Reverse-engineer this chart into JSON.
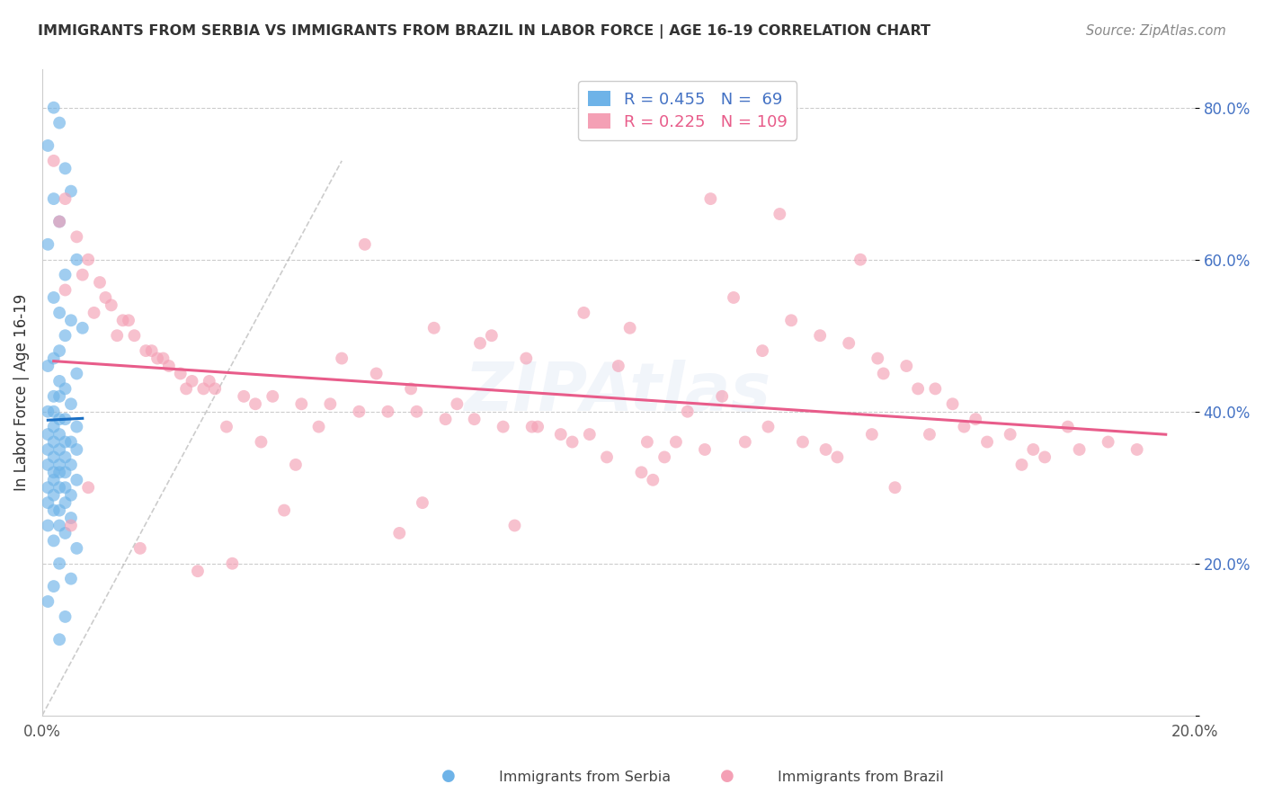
{
  "title": "IMMIGRANTS FROM SERBIA VS IMMIGRANTS FROM BRAZIL IN LABOR FORCE | AGE 16-19 CORRELATION CHART",
  "source": "Source: ZipAtlas.com",
  "ylabel": "In Labor Force | Age 16-19",
  "serbia_R": 0.455,
  "serbia_N": 69,
  "brazil_R": 0.225,
  "brazil_N": 109,
  "serbia_color": "#6eb3e8",
  "brazil_color": "#f4a0b5",
  "serbia_line_color": "#1a6fc4",
  "brazil_line_color": "#e85c8a",
  "x_min": 0.0,
  "x_max": 0.2,
  "y_min": 0.0,
  "y_max": 0.85,
  "serbia_scatter_x": [
    0.002,
    0.003,
    0.001,
    0.004,
    0.005,
    0.002,
    0.003,
    0.001,
    0.006,
    0.004,
    0.002,
    0.003,
    0.005,
    0.007,
    0.004,
    0.003,
    0.002,
    0.001,
    0.006,
    0.003,
    0.004,
    0.002,
    0.003,
    0.005,
    0.002,
    0.001,
    0.004,
    0.003,
    0.006,
    0.002,
    0.001,
    0.003,
    0.004,
    0.002,
    0.005,
    0.003,
    0.001,
    0.006,
    0.004,
    0.002,
    0.003,
    0.001,
    0.005,
    0.002,
    0.004,
    0.003,
    0.006,
    0.002,
    0.001,
    0.004,
    0.003,
    0.005,
    0.002,
    0.001,
    0.004,
    0.003,
    0.002,
    0.005,
    0.001,
    0.003,
    0.004,
    0.002,
    0.006,
    0.003,
    0.005,
    0.002,
    0.001,
    0.004,
    0.003
  ],
  "serbia_scatter_y": [
    0.8,
    0.78,
    0.75,
    0.72,
    0.69,
    0.68,
    0.65,
    0.62,
    0.6,
    0.58,
    0.55,
    0.53,
    0.52,
    0.51,
    0.5,
    0.48,
    0.47,
    0.46,
    0.45,
    0.44,
    0.43,
    0.42,
    0.42,
    0.41,
    0.4,
    0.4,
    0.39,
    0.39,
    0.38,
    0.38,
    0.37,
    0.37,
    0.36,
    0.36,
    0.36,
    0.35,
    0.35,
    0.35,
    0.34,
    0.34,
    0.33,
    0.33,
    0.33,
    0.32,
    0.32,
    0.32,
    0.31,
    0.31,
    0.3,
    0.3,
    0.3,
    0.29,
    0.29,
    0.28,
    0.28,
    0.27,
    0.27,
    0.26,
    0.25,
    0.25,
    0.24,
    0.23,
    0.22,
    0.2,
    0.18,
    0.17,
    0.15,
    0.13,
    0.1
  ],
  "brazil_scatter_x": [
    0.002,
    0.004,
    0.006,
    0.008,
    0.01,
    0.012,
    0.014,
    0.016,
    0.018,
    0.02,
    0.022,
    0.024,
    0.026,
    0.028,
    0.03,
    0.035,
    0.04,
    0.045,
    0.05,
    0.055,
    0.06,
    0.065,
    0.07,
    0.075,
    0.08,
    0.085,
    0.09,
    0.095,
    0.1,
    0.105,
    0.11,
    0.115,
    0.12,
    0.125,
    0.13,
    0.135,
    0.14,
    0.145,
    0.15,
    0.155,
    0.003,
    0.007,
    0.011,
    0.015,
    0.019,
    0.025,
    0.032,
    0.038,
    0.044,
    0.052,
    0.058,
    0.064,
    0.072,
    0.078,
    0.086,
    0.092,
    0.098,
    0.104,
    0.112,
    0.118,
    0.126,
    0.132,
    0.138,
    0.146,
    0.152,
    0.158,
    0.162,
    0.168,
    0.172,
    0.178,
    0.004,
    0.009,
    0.013,
    0.021,
    0.029,
    0.037,
    0.048,
    0.056,
    0.068,
    0.076,
    0.084,
    0.094,
    0.102,
    0.116,
    0.128,
    0.136,
    0.144,
    0.154,
    0.164,
    0.174,
    0.005,
    0.017,
    0.027,
    0.042,
    0.062,
    0.082,
    0.106,
    0.122,
    0.142,
    0.16,
    0.008,
    0.033,
    0.066,
    0.108,
    0.148,
    0.17,
    0.18,
    0.185,
    0.19
  ],
  "brazil_scatter_y": [
    0.73,
    0.68,
    0.63,
    0.6,
    0.57,
    0.54,
    0.52,
    0.5,
    0.48,
    0.47,
    0.46,
    0.45,
    0.44,
    0.43,
    0.43,
    0.42,
    0.42,
    0.41,
    0.41,
    0.4,
    0.4,
    0.4,
    0.39,
    0.39,
    0.38,
    0.38,
    0.37,
    0.37,
    0.46,
    0.36,
    0.36,
    0.35,
    0.55,
    0.48,
    0.52,
    0.5,
    0.49,
    0.47,
    0.46,
    0.43,
    0.65,
    0.58,
    0.55,
    0.52,
    0.48,
    0.43,
    0.38,
    0.36,
    0.33,
    0.47,
    0.45,
    0.43,
    0.41,
    0.5,
    0.38,
    0.36,
    0.34,
    0.32,
    0.4,
    0.42,
    0.38,
    0.36,
    0.34,
    0.45,
    0.43,
    0.41,
    0.39,
    0.37,
    0.35,
    0.38,
    0.56,
    0.53,
    0.5,
    0.47,
    0.44,
    0.41,
    0.38,
    0.62,
    0.51,
    0.49,
    0.47,
    0.53,
    0.51,
    0.68,
    0.66,
    0.35,
    0.37,
    0.37,
    0.36,
    0.34,
    0.25,
    0.22,
    0.19,
    0.27,
    0.24,
    0.25,
    0.31,
    0.36,
    0.6,
    0.38,
    0.3,
    0.2,
    0.28,
    0.34,
    0.3,
    0.33,
    0.35,
    0.36,
    0.35
  ]
}
